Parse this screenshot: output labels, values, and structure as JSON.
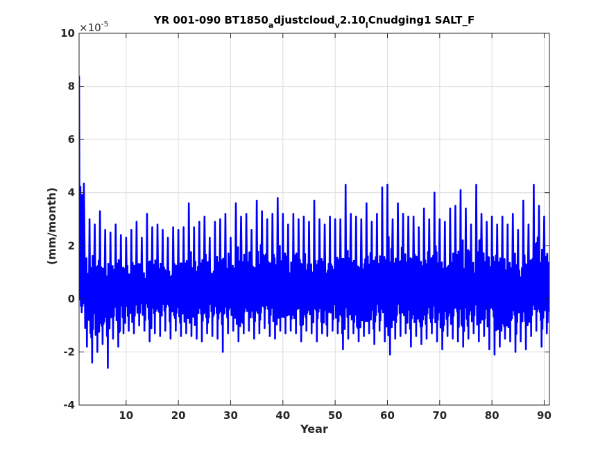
{
  "chart_data": {
    "type": "line",
    "title_parts": [
      {
        "text": "YR 001-090 BT1850",
        "sub": false
      },
      {
        "text": "a",
        "sub": true
      },
      {
        "text": "djustcloud",
        "sub": false
      },
      {
        "text": "v",
        "sub": true
      },
      {
        "text": "2.10",
        "sub": false
      },
      {
        "text": "l",
        "sub": true
      },
      {
        "text": "Cnudging1 SALT_F",
        "sub": false
      }
    ],
    "xlabel": "Year",
    "ylabel": "(mm/month)",
    "y_multiplier_base": "×10",
    "y_multiplier_exp": "-5",
    "xlim": [
      1,
      91
    ],
    "ylim": [
      -4,
      10
    ],
    "x_ticks": [
      10,
      20,
      30,
      40,
      50,
      60,
      70,
      80,
      90
    ],
    "y_ticks": [
      -4,
      -2,
      0,
      2,
      4,
      6,
      8,
      10
    ],
    "grid": true,
    "series": [
      {
        "color": "#0000ff",
        "yearly_peaks": [
          8.4,
          2.9,
          3.0,
          2.8,
          3.3,
          2.6,
          2.5,
          2.8,
          2.4,
          2.3,
          2.6,
          2.9,
          2.3,
          3.2,
          2.7,
          2.8,
          2.6,
          2.3,
          2.7,
          2.6,
          2.7,
          3.6,
          2.7,
          2.9,
          3.1,
          2.3,
          2.9,
          3.0,
          3.2,
          2.3,
          3.6,
          3.1,
          3.2,
          2.6,
          3.7,
          3.3,
          3.0,
          3.2,
          3.8,
          3.2,
          2.8,
          3.2,
          3.0,
          3.1,
          2.9,
          3.7,
          3.0,
          2.8,
          3.1,
          3.0,
          3.0,
          4.3,
          3.2,
          3.1,
          3.0,
          3.6,
          2.9,
          3.2,
          4.2,
          4.3,
          3.0,
          3.6,
          3.2,
          3.1,
          3.1,
          2.7,
          3.4,
          3.0,
          4.0,
          3.0,
          2.9,
          3.4,
          3.5,
          4.1,
          3.4,
          2.8,
          4.3,
          3.2,
          2.9,
          3.1,
          2.8,
          3.1,
          2.8,
          3.2,
          2.6,
          3.7,
          2.8,
          4.3,
          3.5,
          3.1
        ],
        "yearly_troughs": [
          -0.5,
          -1.8,
          -2.4,
          -2.0,
          -1.7,
          -2.6,
          -1.5,
          -1.8,
          -1.3,
          -1.2,
          -1.3,
          -1.0,
          -1.2,
          -1.6,
          -1.3,
          -1.4,
          -1.2,
          -1.5,
          -1.2,
          -1.4,
          -1.3,
          -1.4,
          -1.5,
          -1.6,
          -1.3,
          -1.4,
          -1.5,
          -2.0,
          -1.3,
          -1.2,
          -1.6,
          -1.3,
          -1.2,
          -1.5,
          -1.3,
          -1.1,
          -1.4,
          -1.5,
          -1.2,
          -1.3,
          -1.2,
          -1.3,
          -1.6,
          -1.2,
          -1.3,
          -1.6,
          -1.3,
          -1.4,
          -1.2,
          -1.3,
          -1.9,
          -1.5,
          -1.3,
          -1.6,
          -1.4,
          -1.3,
          -1.7,
          -1.2,
          -1.6,
          -2.1,
          -1.5,
          -1.4,
          -1.3,
          -1.8,
          -1.4,
          -1.7,
          -1.5,
          -1.3,
          -1.6,
          -1.9,
          -1.4,
          -1.5,
          -1.6,
          -1.8,
          -1.5,
          -1.3,
          -1.6,
          -1.4,
          -1.9,
          -2.1,
          -1.8,
          -1.5,
          -1.6,
          -2.0,
          -1.6,
          -1.9,
          -1.4,
          -1.2,
          -1.8,
          -1.3
        ]
      }
    ]
  }
}
